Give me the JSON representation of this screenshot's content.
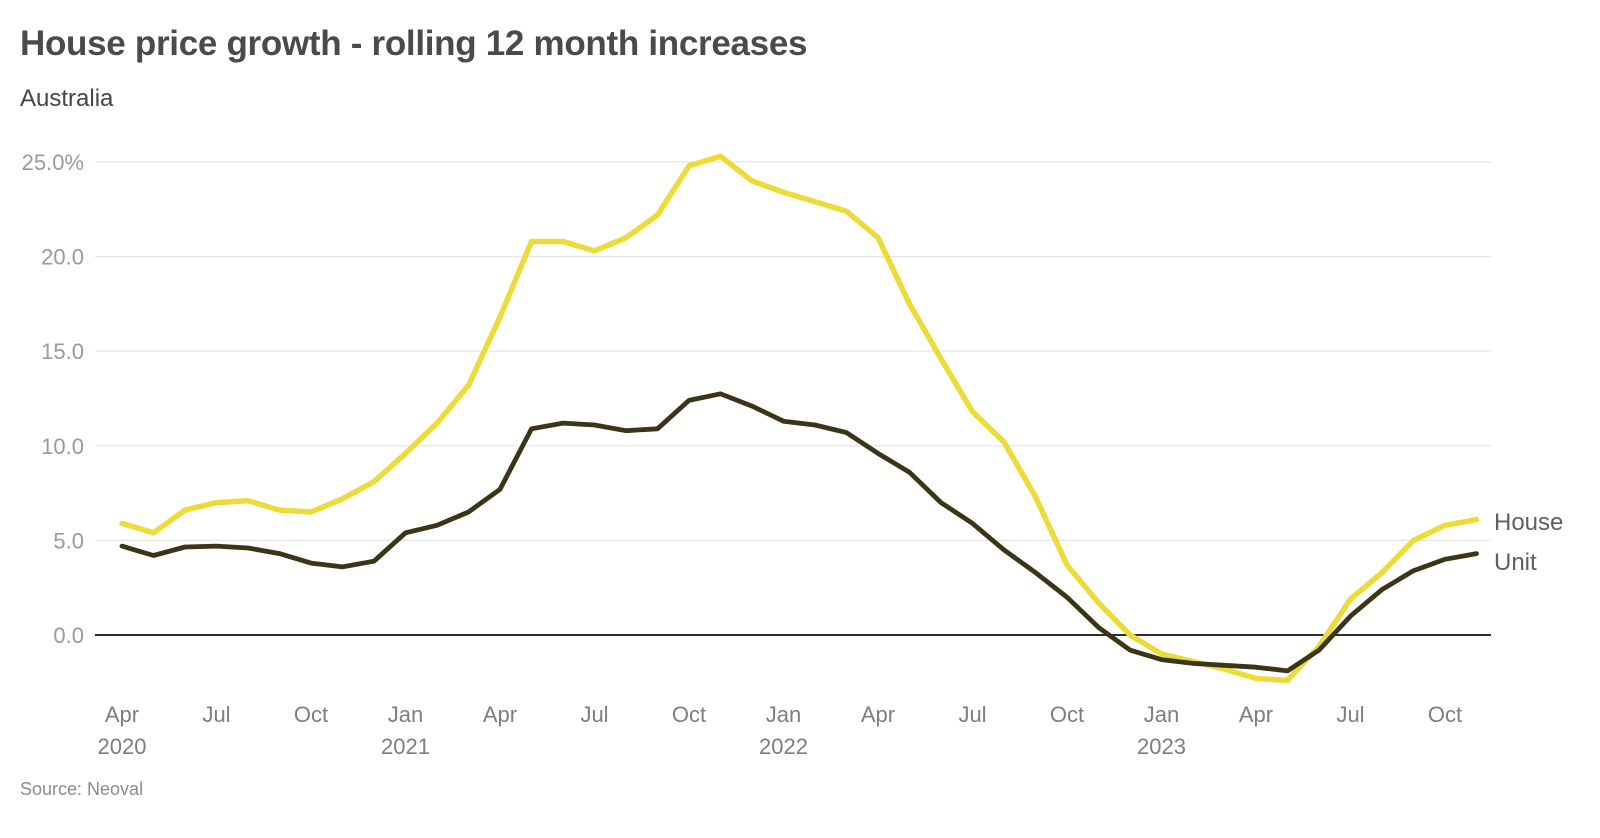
{
  "header": {
    "title": "House price growth - rolling 12 month increases",
    "subtitle": "Australia"
  },
  "legend": {
    "house": "House",
    "unit": "Unit"
  },
  "footer": {
    "source": "Source: Neoval"
  },
  "colors": {
    "house_line": "#EDDB39",
    "unit_line": "#3B3517",
    "grid_line": "#E5E5E5",
    "zero_line": "#111111",
    "y_axis_text": "#9A9A9A",
    "x_axis_text": "#7E7E7E",
    "title_text": "#4A4A4A",
    "legend_text": "#5F5F5F",
    "source_text": "#8C8C8C"
  },
  "chart_data": {
    "type": "line",
    "title": "House price growth - rolling 12 month increases",
    "subtitle": "Australia",
    "xlabel": "",
    "ylabel": "",
    "grid": "horizontal",
    "legend_position": "right-of-line-ends",
    "ylim": [
      -3.5,
      26.5
    ],
    "x": [
      "Apr 2020",
      "May 2020",
      "Jun 2020",
      "Jul 2020",
      "Aug 2020",
      "Sep 2020",
      "Oct 2020",
      "Nov 2020",
      "Dec 2020",
      "Jan 2021",
      "Feb 2021",
      "Mar 2021",
      "Apr 2021",
      "May 2021",
      "Jun 2021",
      "Jul 2021",
      "Aug 2021",
      "Sep 2021",
      "Oct 2021",
      "Nov 2021",
      "Dec 2021",
      "Jan 2022",
      "Feb 2022",
      "Mar 2022",
      "Apr 2022",
      "May 2022",
      "Jun 2022",
      "Jul 2022",
      "Aug 2022",
      "Sep 2022",
      "Oct 2022",
      "Nov 2022",
      "Dec 2022",
      "Jan 2023",
      "Feb 2023",
      "Mar 2023",
      "Apr 2023",
      "May 2023",
      "Jun 2023",
      "Jul 2023",
      "Aug 2023",
      "Sep 2023",
      "Oct 2023",
      "Nov 2023"
    ],
    "series": [
      {
        "name": "House",
        "color_key": "house_line",
        "values": [
          5.9,
          5.4,
          6.6,
          7.0,
          7.1,
          6.6,
          6.5,
          7.2,
          8.1,
          9.6,
          11.2,
          13.2,
          16.8,
          20.8,
          20.8,
          20.3,
          21.0,
          22.2,
          24.8,
          25.3,
          24.0,
          23.4,
          22.9,
          22.4,
          21.0,
          17.5,
          14.6,
          11.8,
          10.2,
          7.3,
          3.7,
          1.7,
          0.0,
          -1.0,
          -1.4,
          -1.8,
          -2.3,
          -2.4,
          -0.6,
          1.9,
          3.3,
          5.0,
          5.8,
          6.1
        ]
      },
      {
        "name": "Unit",
        "color_key": "unit_line",
        "values": [
          4.7,
          4.2,
          4.65,
          4.7,
          4.6,
          4.3,
          3.8,
          3.6,
          3.9,
          5.4,
          5.8,
          6.5,
          7.7,
          10.9,
          11.2,
          11.1,
          10.8,
          10.9,
          12.4,
          12.75,
          12.1,
          11.3,
          11.1,
          10.7,
          9.6,
          8.6,
          7.0,
          5.9,
          4.5,
          3.3,
          2.0,
          0.4,
          -0.8,
          -1.3,
          -1.5,
          -1.6,
          -1.7,
          -1.9,
          -0.8,
          1.0,
          2.4,
          3.4,
          4.0,
          4.3
        ]
      }
    ],
    "yticks": [
      {
        "value": 25,
        "label": "25.0%"
      },
      {
        "value": 20,
        "label": "20.0"
      },
      {
        "value": 15,
        "label": "15.0"
      },
      {
        "value": 10,
        "label": "10.0"
      },
      {
        "value": 5,
        "label": "5.0"
      },
      {
        "value": 0,
        "label": "0.0"
      }
    ],
    "xticks": [
      {
        "index": 0,
        "label": "Apr",
        "year": "2020"
      },
      {
        "index": 3,
        "label": "Jul"
      },
      {
        "index": 6,
        "label": "Oct"
      },
      {
        "index": 9,
        "label": "Jan",
        "year": "2021"
      },
      {
        "index": 12,
        "label": "Apr"
      },
      {
        "index": 15,
        "label": "Jul"
      },
      {
        "index": 18,
        "label": "Oct"
      },
      {
        "index": 21,
        "label": "Jan",
        "year": "2022"
      },
      {
        "index": 24,
        "label": "Apr"
      },
      {
        "index": 27,
        "label": "Jul"
      },
      {
        "index": 30,
        "label": "Oct"
      },
      {
        "index": 33,
        "label": "Jan",
        "year": "2023"
      },
      {
        "index": 36,
        "label": "Apr"
      },
      {
        "index": 39,
        "label": "Jul"
      },
      {
        "index": 42,
        "label": "Oct"
      }
    ]
  }
}
